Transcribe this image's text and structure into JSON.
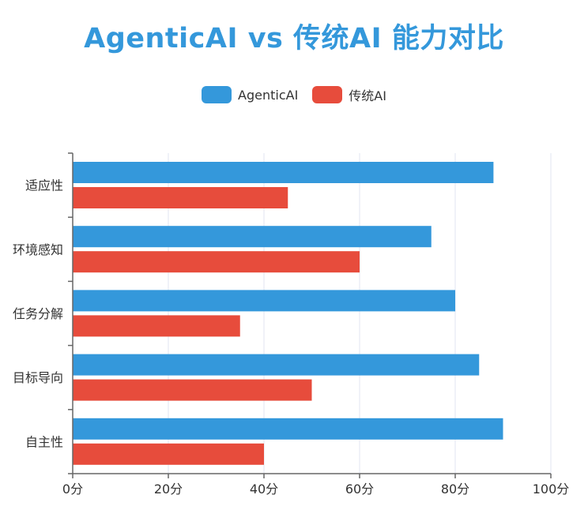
{
  "chart_data": {
    "type": "bar",
    "orientation": "horizontal",
    "title": "AgenticAI vs 传统AI 能力对比",
    "categories": [
      "适应性",
      "环境感知",
      "任务分解",
      "目标导向",
      "自主性"
    ],
    "series": [
      {
        "name": "AgenticAI",
        "color": "#3498db",
        "values": [
          88,
          75,
          80,
          85,
          90
        ]
      },
      {
        "name": "传统AI",
        "color": "#e74c3c",
        "values": [
          45,
          60,
          35,
          50,
          40
        ]
      }
    ],
    "x_ticks": [
      "0分",
      "20分",
      "40分",
      "60分",
      "80分",
      "100分"
    ],
    "xlim": [
      0,
      100
    ],
    "grid": true,
    "legend_position": "top-center"
  },
  "colors": {
    "title": "#3498db",
    "axis": "#666666",
    "grid": "#e0e6f1"
  }
}
